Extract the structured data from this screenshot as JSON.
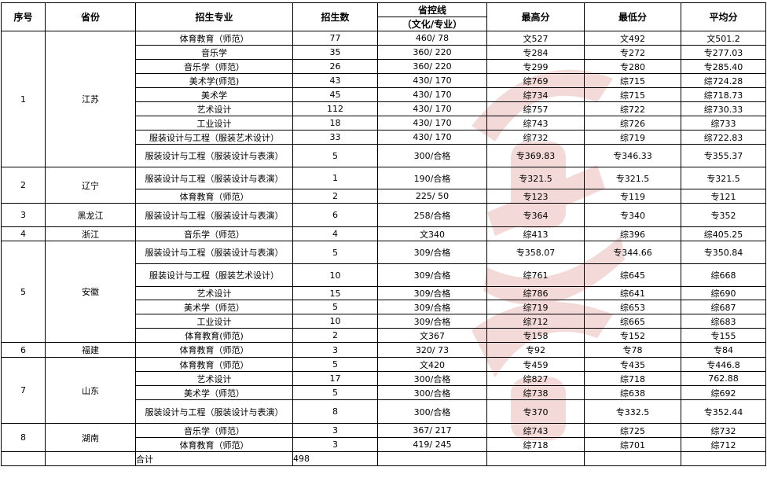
{
  "header": {
    "index": "序号",
    "province": "省份",
    "major": "招生专业",
    "enrollment": "招生数",
    "control_line": "省控线",
    "control_line_sub": "（文化/专业）",
    "max": "最高分",
    "min": "最低分",
    "avg": "平均分"
  },
  "groups": [
    {
      "index": "1",
      "province": "江苏",
      "rows": [
        [
          "体育教育（师范）",
          "77",
          "460/ 78",
          "文527",
          "文492",
          "文501.2"
        ],
        [
          "音乐学",
          "35",
          "360/ 220",
          "专284",
          "专272",
          "专277.03"
        ],
        [
          "音乐学（师范）",
          "26",
          "360/ 220",
          "专299",
          "专280",
          "专285.40"
        ],
        [
          "美术学(师范)",
          "43",
          "430/ 170",
          "综769",
          "综715",
          "综724.28"
        ],
        [
          "美术学",
          "45",
          "430/ 170",
          "综734",
          "综715",
          "综718.73"
        ],
        [
          "艺术设计",
          "112",
          "430/ 170",
          "综757",
          "综722",
          "综730.33"
        ],
        [
          "工业设计",
          "18",
          "430/ 170",
          "综743",
          "综726",
          "综733"
        ],
        [
          "服装设计与工程（服装艺术设计）",
          "33",
          "430/ 170",
          "综732",
          "综719",
          "综722.83"
        ],
        [
          "服装设计与工程（服装设计与表演）",
          "5",
          "300/合格",
          "专369.83",
          "专346.33",
          "专355.37"
        ]
      ]
    },
    {
      "index": "2",
      "province": "辽宁",
      "rows": [
        [
          "服装设计与工程（服装设计与表演）",
          "1",
          "190/合格",
          "专321.5",
          "专321.5",
          "专321.5"
        ],
        [
          "体育教育（师范）",
          "2",
          "225/ 50",
          "专123",
          "专119",
          "专121"
        ]
      ]
    },
    {
      "index": "3",
      "province": "黑龙江",
      "rows": [
        [
          "服装设计与工程（服装设计与表演）",
          "6",
          "258/合格",
          "专364",
          "专340",
          "专352"
        ]
      ]
    },
    {
      "index": "4",
      "province": "浙江",
      "rows": [
        [
          "音乐学（师范）",
          "4",
          "文340",
          "综413",
          "综396",
          "综405.25"
        ]
      ]
    },
    {
      "index": "5",
      "province": "安徽",
      "rows": [
        [
          "服装设计与工程（服装设计与表演）",
          "5",
          "309/合格",
          "专358.07",
          "专344.66",
          "专350.84"
        ],
        [
          "服装设计与工程（服装艺术设计）",
          "10",
          "309/合格",
          "综761",
          "综645",
          "综668"
        ],
        [
          "艺术设计",
          "15",
          "309/合格",
          "综786",
          "综641",
          "综690"
        ],
        [
          "美术学（师范）",
          "5",
          "309/合格",
          "综719",
          "综653",
          "综687"
        ],
        [
          "工业设计",
          "10",
          "309/合格",
          "综712",
          "综665",
          "综683"
        ],
        [
          "体育教育(师范)",
          "2",
          "文367",
          "专158",
          "专152",
          "专155"
        ]
      ]
    },
    {
      "index": "6",
      "province": "福建",
      "rows": [
        [
          "体育教育（师范）",
          "3",
          "320/ 73",
          "专92",
          "专78",
          "专84"
        ]
      ]
    },
    {
      "index": "7",
      "province": "山东",
      "rows": [
        [
          "体育教育（师范）",
          "5",
          "文420",
          "专459",
          "专435",
          "专446.8"
        ],
        [
          "艺术设计",
          "17",
          "300/合格",
          "综827",
          "综718",
          "762.88"
        ],
        [
          "美术学（师范）",
          "5",
          "300/合格",
          "综738",
          "综638",
          "综692"
        ],
        [
          "服装设计与工程（服装设计与表演）",
          "8",
          "300/合格",
          "专370",
          "专332.5",
          "专352.44"
        ]
      ]
    },
    {
      "index": "8",
      "province": "湖南",
      "rows": [
        [
          "音乐学（师范）",
          "3",
          "367/ 217",
          "综743",
          "综725",
          "综732"
        ],
        [
          "体育教育（师范）",
          "3",
          "419/ 245",
          "综718",
          "综701",
          "综712"
        ]
      ]
    }
  ],
  "total": {
    "label": "合计",
    "value": "498"
  },
  "watermark": {
    "text": "中国美术高考网",
    "color": "#c0392b"
  }
}
